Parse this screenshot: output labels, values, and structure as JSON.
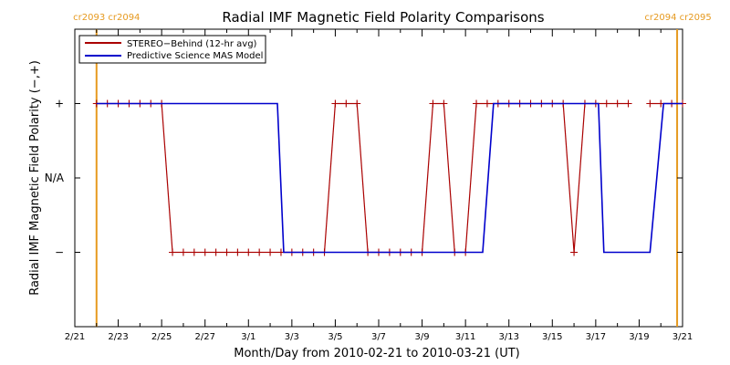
{
  "chart_data": {
    "type": "line",
    "title": "Radial IMF Magnetic Field Polarity Comparisons",
    "xlabel": "Month/Day from 2010-02-21 to 2010-03-21 (UT)",
    "ylabel": "Radial IMF Magnetic Field Polarity (−,+)",
    "x_ticks": [
      "2/21",
      "2/23",
      "2/25",
      "2/27",
      "3/1",
      "3/3",
      "3/5",
      "3/7",
      "3/9",
      "3/11",
      "3/13",
      "3/15",
      "3/17",
      "3/19",
      "3/21"
    ],
    "y_ticks": [
      "−",
      "N/A",
      "+"
    ],
    "y_categories": [
      -1,
      0,
      1
    ],
    "xlim": [
      "2010-02-21",
      "2010-03-21"
    ],
    "ylim": [
      -2,
      2
    ],
    "legend_position": "top-left",
    "carrington_markers": [
      {
        "date": "2010-02-22",
        "label": "cr2093 cr2094",
        "side": "left"
      },
      {
        "date": "2010-03-20.75",
        "label": "cr2094 cr2095",
        "side": "right"
      }
    ],
    "series": [
      {
        "name": "STEREO−Behind (12-hr avg)",
        "color": "#aa0000",
        "marker": "plus",
        "points": [
          [
            "2010-02-22 00:00",
            1
          ],
          [
            "2010-02-22 12:00",
            1
          ],
          [
            "2010-02-23 00:00",
            1
          ],
          [
            "2010-02-23 12:00",
            1
          ],
          [
            "2010-02-24 00:00",
            1
          ],
          [
            "2010-02-24 12:00",
            1
          ],
          [
            "2010-02-25 00:00",
            1
          ],
          [
            "2010-02-25 12:00",
            -1
          ],
          [
            "2010-02-26 00:00",
            -1
          ],
          [
            "2010-02-26 12:00",
            -1
          ],
          [
            "2010-02-27 00:00",
            -1
          ],
          [
            "2010-02-27 12:00",
            -1
          ],
          [
            "2010-02-28 00:00",
            -1
          ],
          [
            "2010-02-28 12:00",
            -1
          ],
          [
            "2010-03-01 00:00",
            -1
          ],
          [
            "2010-03-01 12:00",
            -1
          ],
          [
            "2010-03-02 00:00",
            -1
          ],
          [
            "2010-03-02 12:00",
            -1
          ],
          [
            "2010-03-03 00:00",
            -1
          ],
          [
            "2010-03-03 12:00",
            -1
          ],
          [
            "2010-03-04 00:00",
            -1
          ],
          [
            "2010-03-04 12:00",
            -1
          ],
          [
            "2010-03-05 00:00",
            1
          ],
          [
            "2010-03-05 12:00",
            1
          ],
          [
            "2010-03-06 00:00",
            1
          ],
          [
            "2010-03-06 12:00",
            -1
          ],
          [
            "2010-03-07 00:00",
            -1
          ],
          [
            "2010-03-07 12:00",
            -1
          ],
          [
            "2010-03-08 00:00",
            -1
          ],
          [
            "2010-03-08 12:00",
            -1
          ],
          [
            "2010-03-09 00:00",
            -1
          ],
          [
            "2010-03-09 12:00",
            1
          ],
          [
            "2010-03-10 00:00",
            1
          ],
          [
            "2010-03-10 12:00",
            -1
          ],
          [
            "2010-03-11 00:00",
            -1
          ],
          [
            "2010-03-11 12:00",
            1
          ],
          [
            "2010-03-12 00:00",
            1
          ],
          [
            "2010-03-12 12:00",
            1
          ],
          [
            "2010-03-13 00:00",
            1
          ],
          [
            "2010-03-13 12:00",
            1
          ],
          [
            "2010-03-14 00:00",
            1
          ],
          [
            "2010-03-14 12:00",
            1
          ],
          [
            "2010-03-15 00:00",
            1
          ],
          [
            "2010-03-15 12:00",
            1
          ],
          [
            "2010-03-16 00:00",
            -1
          ],
          [
            "2010-03-16 12:00",
            1
          ],
          [
            "2010-03-17 00:00",
            1
          ],
          [
            "2010-03-17 12:00",
            1
          ],
          [
            "2010-03-18 00:00",
            1
          ],
          [
            "2010-03-18 12:00",
            1
          ],
          [
            "2010-03-19 12:00",
            1
          ],
          [
            "2010-03-20 00:00",
            1
          ],
          [
            "2010-03-20 12:00",
            1
          ],
          [
            "2010-03-21 00:00",
            1
          ]
        ]
      },
      {
        "name": "Predictive Science MAS Model",
        "color": "#0000cc",
        "marker": "none",
        "points": [
          [
            "2010-02-22 00:00",
            1
          ],
          [
            "2010-03-02 08:00",
            1
          ],
          [
            "2010-03-02 15:00",
            -1
          ],
          [
            "2010-03-11 19:00",
            -1
          ],
          [
            "2010-03-12 07:00",
            1
          ],
          [
            "2010-03-17 03:00",
            1
          ],
          [
            "2010-03-17 09:00",
            -1
          ],
          [
            "2010-03-19 12:00",
            -1
          ],
          [
            "2010-03-20 03:00",
            1
          ],
          [
            "2010-03-21 00:00",
            1
          ]
        ]
      }
    ]
  }
}
